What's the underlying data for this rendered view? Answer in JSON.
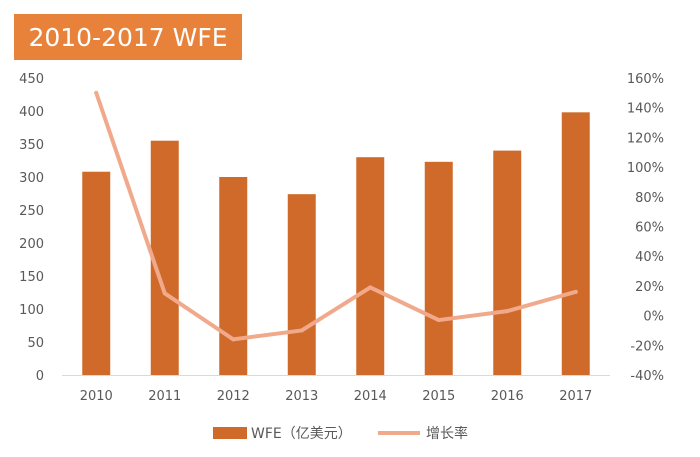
{
  "colors": {
    "bar": "#d06a2a",
    "line": "#f1a98b",
    "title_bg": "#e8823a",
    "axis_text": "#595959",
    "axis_line": "#d9d9d9"
  },
  "chart_data": {
    "type": "bar",
    "title": "2010-2017 WFE",
    "categories": [
      "2010",
      "2011",
      "2012",
      "2013",
      "2014",
      "2015",
      "2016",
      "2017"
    ],
    "series": [
      {
        "name": "WFE（亿美元）",
        "type": "bar",
        "axis": "left",
        "values": [
          308,
          355,
          300,
          274,
          330,
          323,
          340,
          398
        ]
      },
      {
        "name": "增长率",
        "type": "line",
        "axis": "right",
        "values": [
          150,
          15,
          -16,
          -10,
          19,
          -3,
          3,
          16
        ]
      }
    ],
    "y_left": {
      "min": 0,
      "max": 450,
      "step": 50,
      "ticks": [
        "0",
        "50",
        "100",
        "150",
        "200",
        "250",
        "300",
        "350",
        "400",
        "450"
      ]
    },
    "y_right": {
      "min": -40,
      "max": 160,
      "step": 20,
      "ticks": [
        "-40%",
        "-20%",
        "0%",
        "20%",
        "40%",
        "60%",
        "80%",
        "100%",
        "120%",
        "140%",
        "160%"
      ]
    },
    "grid": false,
    "legend": "bottom-center"
  }
}
